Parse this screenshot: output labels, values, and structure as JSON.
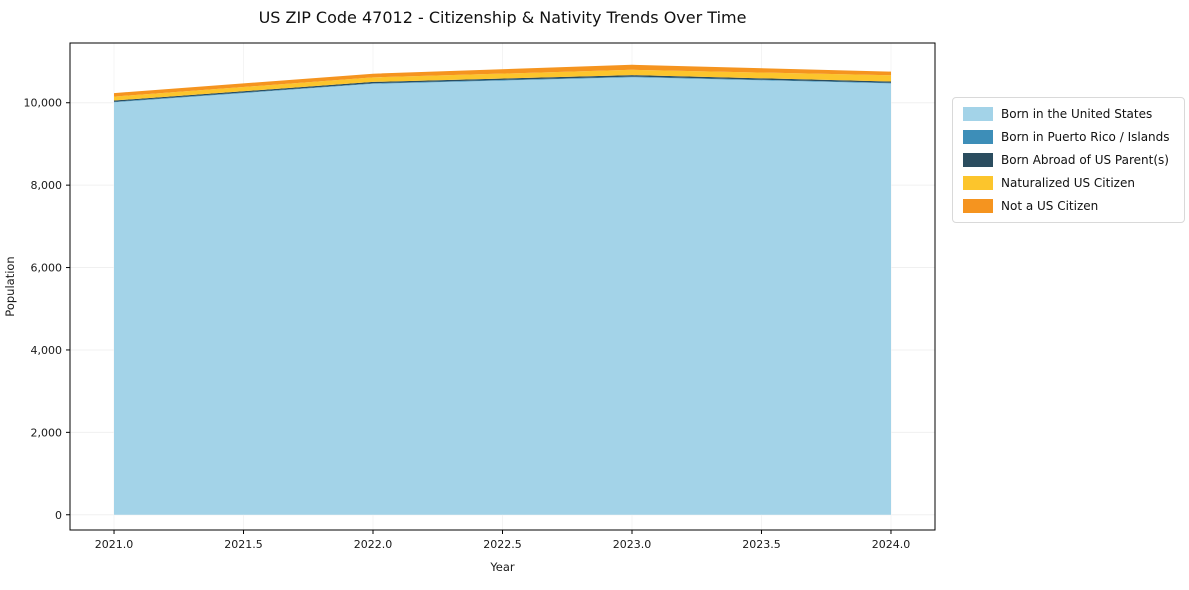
{
  "chart_data": {
    "type": "area",
    "title": "US ZIP Code 47012 - Citizenship & Nativity Trends Over Time",
    "xlabel": "Year",
    "ylabel": "Population",
    "x": [
      2021,
      2022,
      2023,
      2024
    ],
    "series": [
      {
        "name": "Born in the United States",
        "color": "#a3d3e8",
        "values": [
          10010,
          10460,
          10620,
          10470
        ]
      },
      {
        "name": "Born in Puerto Rico / Islands",
        "color": "#3d8eb8",
        "values": [
          15,
          15,
          15,
          15
        ]
      },
      {
        "name": "Born Abroad of US Parent(s)",
        "color": "#2b4d5f",
        "values": [
          30,
          30,
          35,
          30
        ]
      },
      {
        "name": "Naturalized US Citizen",
        "color": "#fcc52c",
        "values": [
          95,
          110,
          130,
          150
        ]
      },
      {
        "name": "Not a US Citizen",
        "color": "#f5941f",
        "values": [
          85,
          90,
          120,
          90
        ]
      }
    ],
    "x_ticks": [
      "2021.0",
      "2021.5",
      "2022.0",
      "2022.5",
      "2023.0",
      "2023.5",
      "2024.0"
    ],
    "x_tick_values": [
      2021,
      2021.5,
      2022,
      2022.5,
      2023,
      2023.5,
      2024
    ],
    "y_ticks": [
      "0",
      "2,000",
      "4,000",
      "6,000",
      "8,000",
      "10,000"
    ],
    "y_tick_values": [
      0,
      2000,
      4000,
      6000,
      8000,
      10000
    ],
    "xlim": [
      2020.83,
      2024.17
    ],
    "ylim": [
      -370,
      11450
    ],
    "grid": true,
    "legend_position": "right"
  }
}
